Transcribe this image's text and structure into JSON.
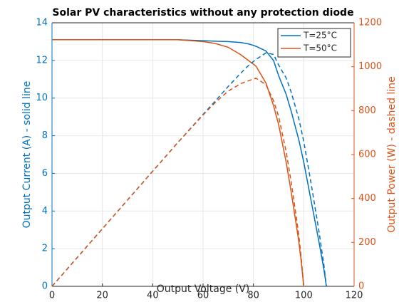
{
  "chart_data": {
    "type": "line",
    "title": "Solar PV characteristics without any protection diode",
    "x_label": "Output Voltage (V)",
    "y_label": "Output Current (A) - solid line",
    "y2_label": "Output Power (W) - dashed line",
    "x": [
      0,
      20,
      40,
      50,
      60,
      65,
      70,
      75,
      78,
      80,
      81,
      85,
      88,
      90,
      93,
      95,
      97,
      98,
      99,
      100,
      103,
      106,
      108,
      109
    ],
    "series": [
      {
        "name": "T=25°C",
        "color": "#0072bd",
        "dash": false,
        "values": [
          13.1,
          13.1,
          13.1,
          13.1,
          13.05,
          13.02,
          13.0,
          12.95,
          12.88,
          12.8,
          12.75,
          12.5,
          12.0,
          11.2,
          10.2,
          9.3,
          8.3,
          7.8,
          7.2,
          6.6,
          4.5,
          2.4,
          0.9,
          0
        ]
      },
      {
        "name": "T=50°C",
        "color": "#d95319",
        "dash": false,
        "values": [
          13.1,
          13.1,
          13.1,
          13.1,
          13.0,
          12.9,
          12.7,
          12.3,
          12.0,
          11.8,
          11.7,
          10.8,
          9.6,
          8.6,
          6.6,
          5.0,
          3.3,
          2.4,
          1.3,
          0,
          null,
          null,
          null,
          null
        ]
      },
      {
        "color": "#0072bd",
        "dash": true,
        "axis": "y2",
        "values": [
          0,
          262,
          524,
          655,
          783,
          846,
          910,
          971,
          1005,
          1024,
          1033,
          1063,
          1056,
          1008,
          949,
          884,
          805,
          764,
          713,
          660,
          464,
          254,
          97,
          0
        ]
      },
      {
        "color": "#d95319",
        "dash": true,
        "axis": "y2",
        "values": [
          0,
          262,
          524,
          655,
          780,
          839,
          889,
          923,
          936,
          944,
          948,
          918,
          845,
          774,
          614,
          475,
          320,
          235,
          129,
          0,
          null,
          null,
          null,
          null
        ]
      }
    ],
    "xlim": [
      0,
      120
    ],
    "xticks": [
      0,
      20,
      40,
      60,
      80,
      100,
      120
    ],
    "ylim": [
      0,
      14
    ],
    "yticks": [
      0,
      2,
      4,
      6,
      8,
      10,
      12,
      14
    ],
    "y2lim": [
      0,
      1200
    ],
    "y2ticks": [
      0,
      200,
      400,
      600,
      800,
      1000,
      1200
    ],
    "grid": true,
    "legend": "upper right"
  }
}
